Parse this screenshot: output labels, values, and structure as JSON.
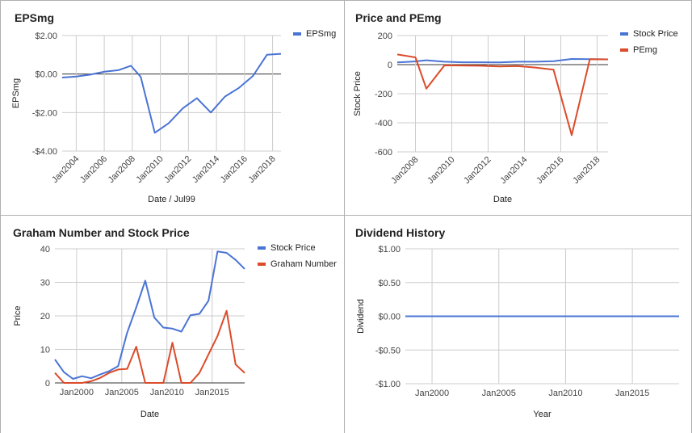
{
  "chart_data": [
    {
      "type": "line",
      "title": "EPSmg",
      "xlabel": "Date / Jul99",
      "ylabel": "EPSmg",
      "x_tick_labels": [
        "Jan2004",
        "Jan2006",
        "Jan2008",
        "Jan2010",
        "Jan2012",
        "Jan2014",
        "Jan2016",
        "Jan2018"
      ],
      "x_tick_values": [
        2004,
        2006,
        2008,
        2010,
        2012,
        2014,
        2016,
        2018
      ],
      "y_tick_labels": [
        "$2.00",
        "$0.00",
        "-$2.00",
        "-$4.00"
      ],
      "y_tick_values": [
        2,
        0,
        -2,
        -4
      ],
      "xlim": [
        2003.0,
        2018.6
      ],
      "ylim": [
        -4,
        2
      ],
      "grid": true,
      "legend_position": "top-right",
      "series": [
        {
          "name": "EPSmg",
          "color": "#4a74d4",
          "x": [
            2003.0,
            2004.0,
            2005.0,
            2006.0,
            2007.0,
            2007.9,
            2008.6,
            2009.6,
            2010.6,
            2011.6,
            2012.6,
            2013.6,
            2014.6,
            2015.6,
            2016.6,
            2017.6,
            2018.6
          ],
          "values": [
            -0.18,
            -0.13,
            -0.03,
            0.12,
            0.2,
            0.43,
            -0.15,
            -3.05,
            -2.55,
            -1.78,
            -1.25,
            -2.0,
            -1.17,
            -0.72,
            -0.1,
            1.0,
            1.05
          ]
        }
      ]
    },
    {
      "type": "line",
      "title": "Price and PEmg",
      "xlabel": "Date",
      "ylabel": "Stock Price",
      "x_tick_labels": [
        "Jan2008",
        "Jan2010",
        "Jan2012",
        "Jan2014",
        "Jan2016",
        "Jan2018"
      ],
      "x_tick_values": [
        2008,
        2010,
        2012,
        2014,
        2016,
        2018
      ],
      "y_tick_labels": [
        "200",
        "0",
        "-200",
        "-400",
        "-600"
      ],
      "y_tick_values": [
        200,
        0,
        -200,
        -400,
        -600
      ],
      "xlim": [
        2007.0,
        2018.6
      ],
      "ylim": [
        -600,
        200
      ],
      "grid": true,
      "legend_position": "top-right",
      "series": [
        {
          "name": "Stock Price",
          "color": "#4a74d4",
          "x": [
            2007.0,
            2008.0,
            2008.6,
            2009.6,
            2010.6,
            2011.6,
            2012.6,
            2013.6,
            2014.6,
            2015.6,
            2016.6,
            2017.6,
            2018.6
          ],
          "values": [
            15,
            22,
            30,
            20,
            16,
            16,
            15,
            20,
            20,
            24,
            39,
            38,
            36
          ]
        },
        {
          "name": "PEmg",
          "color": "#dc4b2a",
          "x": [
            2007.0,
            2008.0,
            2008.6,
            2009.6,
            2010.6,
            2011.6,
            2012.6,
            2013.6,
            2014.6,
            2015.6,
            2016.6,
            2017.6,
            2018.6
          ],
          "values": [
            70,
            50,
            -165,
            -5,
            -6,
            -8,
            -12,
            -10,
            -20,
            -35,
            -485,
            38,
            36
          ]
        }
      ]
    },
    {
      "type": "line",
      "title": "Graham Number and Stock Price",
      "xlabel": "Date",
      "ylabel": "Price",
      "x_tick_labels": [
        "Jan2000",
        "Jan2005",
        "Jan2010",
        "Jan2015"
      ],
      "x_tick_values": [
        2000,
        2005,
        2010,
        2015
      ],
      "y_tick_labels": [
        "40",
        "30",
        "20",
        "10",
        "0"
      ],
      "y_tick_values": [
        40,
        30,
        20,
        10,
        0
      ],
      "xlim": [
        1997.6,
        2018.6
      ],
      "ylim": [
        0,
        40
      ],
      "grid": true,
      "legend_position": "top-right",
      "series": [
        {
          "name": "Stock Price",
          "color": "#4a74d4",
          "x": [
            1997.6,
            1998.6,
            1999.6,
            2000.6,
            2001.6,
            2002.6,
            2003.6,
            2004.6,
            2005.6,
            2006.6,
            2007.6,
            2008.6,
            2009.6,
            2010.6,
            2011.6,
            2012.6,
            2013.6,
            2014.6,
            2015.6,
            2016.6,
            2017.6,
            2018.6
          ],
          "values": [
            7,
            3.2,
            1.2,
            2,
            1.4,
            2.5,
            3.5,
            5,
            15,
            22.5,
            30.5,
            19.5,
            16.5,
            16.2,
            15.3,
            20.2,
            20.6,
            24.5,
            39.2,
            38.8,
            36.7,
            34
          ]
        },
        {
          "name": "Graham Number",
          "color": "#dc4b2a",
          "x": [
            1997.6,
            1998.6,
            1999.6,
            2000.6,
            2001.6,
            2002.6,
            2003.6,
            2004.6,
            2005.6,
            2006.6,
            2007.6,
            2008.6,
            2009.6,
            2010.6,
            2011.6,
            2012.6,
            2013.6,
            2014.6,
            2015.6,
            2016.6,
            2017.6,
            2018.6
          ],
          "values": [
            3,
            0,
            0,
            0,
            0.5,
            1.5,
            3,
            4,
            4.2,
            10.8,
            0,
            0,
            0,
            12,
            0,
            0,
            3,
            8.5,
            14,
            21.5,
            5.5,
            3
          ]
        }
      ]
    },
    {
      "type": "line",
      "title": "Dividend History",
      "xlabel": "Year",
      "ylabel": "Dividend",
      "x_tick_labels": [
        "Jan2000",
        "Jan2005",
        "Jan2010",
        "Jan2015"
      ],
      "x_tick_values": [
        2000,
        2005,
        2010,
        2015
      ],
      "y_tick_labels": [
        "$1.00",
        "$0.50",
        "$0.00",
        "-$0.50",
        "-$1.00"
      ],
      "y_tick_values": [
        1,
        0.5,
        0,
        -0.5,
        -1
      ],
      "xlim": [
        1998.0,
        2018.5
      ],
      "ylim": [
        -1,
        1
      ],
      "grid": true,
      "legend_position": "none",
      "series": [
        {
          "color": "#4a74d4",
          "x": [
            1998.0,
            2018.5
          ],
          "values": [
            0,
            0
          ]
        }
      ]
    }
  ]
}
